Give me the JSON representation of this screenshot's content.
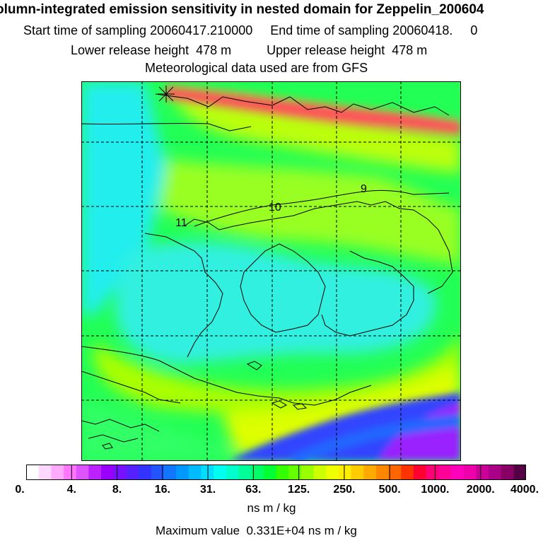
{
  "header": {
    "title_line1": "olumn-integrated emission sensitivity in nested domain for Zeppelin_200604",
    "title_line2": "Start time of sampling 20060417.210000     End time of sampling 20060418.     0",
    "title_line3": "Lower release height  478 m          Upper release height  478 m",
    "title_line4": "Meteorological data used are from GFS"
  },
  "map": {
    "contour_labels": [
      "11",
      "10",
      "9"
    ],
    "colors": {
      "background": "#22ff55",
      "cyan": "#22f0f0",
      "lime": "#aaff00",
      "yellow": "#ddff00",
      "magenta": "#ff1177",
      "blue": "#3344ff",
      "purple": "#9922ff",
      "coast": "#000000",
      "grid": "#000000"
    }
  },
  "legend": {
    "tick_labels": [
      "0.",
      "4.",
      "8.",
      "16.",
      "31.",
      "63.",
      "125.",
      "250.",
      "500.",
      "1000.",
      "2000.",
      "4000."
    ],
    "colors": [
      "#ffffff",
      "#ffd8ff",
      "#ffaaff",
      "#ff77ff",
      "#dd55ff",
      "#bb22ff",
      "#9900ff",
      "#7711ff",
      "#5522ff",
      "#3333ff",
      "#2255ff",
      "#1177ff",
      "#0099ff",
      "#00bbff",
      "#00ddff",
      "#00ffee",
      "#00ffcc",
      "#00ff99",
      "#00ff66",
      "#00ff33",
      "#33ff00",
      "#66ff00",
      "#99ff00",
      "#ccff00",
      "#eeff00",
      "#ffee00",
      "#ffcc00",
      "#ffaa00",
      "#ff8800",
      "#ff6600",
      "#ff3300",
      "#ff0033",
      "#ff0077",
      "#ff0099",
      "#ff00bb",
      "#ee00aa",
      "#cc0099",
      "#aa0088",
      "#880066",
      "#550044"
    ],
    "units": "ns m / kg",
    "max_value": "Maximum value  0.331E+04 ns m / kg"
  }
}
